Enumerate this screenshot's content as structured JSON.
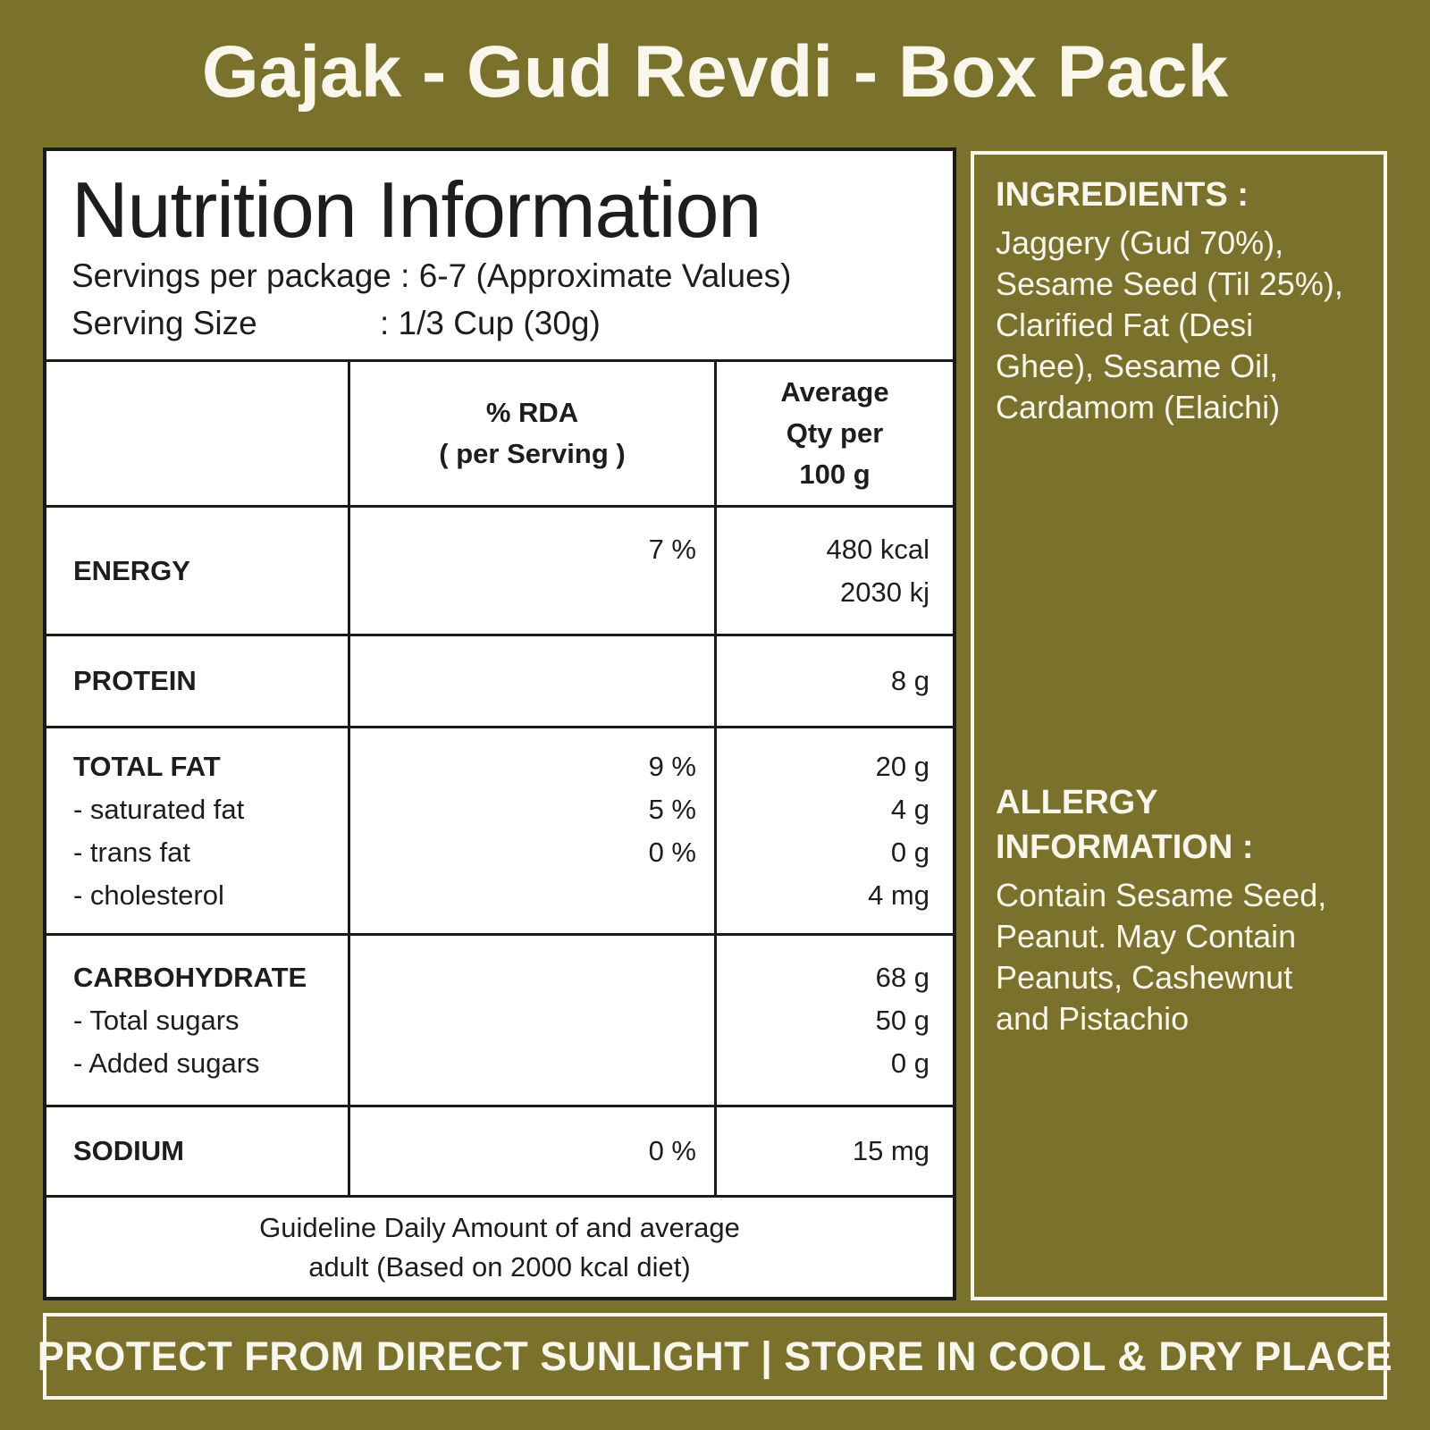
{
  "page": {
    "title": "Gajak - Gud Revdi - Box Pack",
    "storage_note": "PROTECT FROM DIRECT SUNLIGHT | STORE IN COOL & DRY PLACE"
  },
  "colors": {
    "background_olive": "#7a722c",
    "panel_white": "#ffffff",
    "ink_black": "#1a1a18",
    "cream_white": "#f9f6ec"
  },
  "nutrition": {
    "heading": "Nutrition Information",
    "servings_line": "Servings per package : 6-7 (Approximate Values)",
    "serving_size_label": "Serving Size",
    "serving_size_value": ": 1/3 Cup (30g)",
    "header": {
      "col2": [
        "% RDA",
        "( per Serving )"
      ],
      "col3": [
        "Average",
        "Qty per",
        "100 g"
      ]
    },
    "rows": [
      {
        "name": [
          "ENERGY"
        ],
        "rda": [
          "7 %",
          ""
        ],
        "qty": [
          "480 kcal",
          "2030 kj"
        ]
      },
      {
        "name": [
          "PROTEIN"
        ],
        "rda": [],
        "qty": [
          "8 g"
        ]
      },
      {
        "name": [
          "TOTAL FAT",
          "- saturated fat",
          "- trans fat",
          "- cholesterol"
        ],
        "rda": [
          "9 %",
          "5 %",
          "0 %",
          ""
        ],
        "qty": [
          "20 g",
          "4 g",
          "0 g",
          "4 mg"
        ]
      },
      {
        "name": [
          "CARBOHYDRATE",
          "- Total sugars",
          "- Added sugars"
        ],
        "rda": [],
        "qty": [
          "68 g",
          "50 g",
          "0 g"
        ]
      },
      {
        "name": [
          "SODIUM"
        ],
        "rda": [
          "0 %"
        ],
        "qty": [
          "15 mg"
        ]
      }
    ],
    "guideline": [
      "Guideline Daily Amount of and average",
      "adult (Based on 2000 kcal diet)"
    ]
  },
  "ingredients": {
    "heading": "INGREDIENTS :",
    "body": "Jaggery (Gud 70%), Sesame Seed (Til 25%), Clarified Fat (Desi Ghee), Sesame Oil, Cardamom (Elaichi)"
  },
  "allergy": {
    "heading": "ALLERGY INFORMATION :",
    "body": "Contain Sesame Seed, Peanut. May Contain Peanuts, Cashewnut and Pistachio"
  }
}
